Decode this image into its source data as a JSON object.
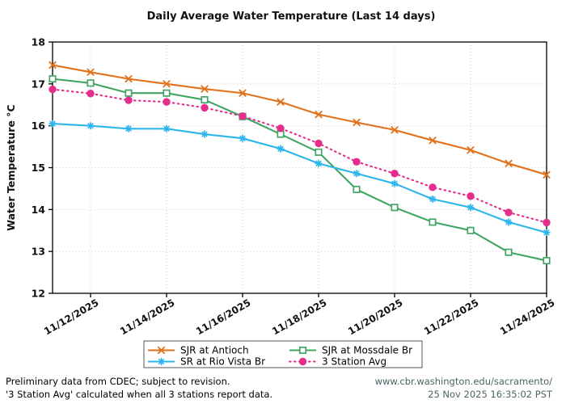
{
  "chart_data": {
    "type": "line",
    "title": "Daily Average Water Temperature (Last 14 days)",
    "ylabel": "Water Temperature °C",
    "xlabel": "",
    "ylim": [
      12,
      18
    ],
    "y_ticks": [
      12,
      13,
      14,
      15,
      16,
      17,
      18
    ],
    "grid": true,
    "legend_position": "bottom",
    "x": [
      "11/11/2025",
      "11/12/2025",
      "11/13/2025",
      "11/14/2025",
      "11/15/2025",
      "11/16/2025",
      "11/17/2025",
      "11/18/2025",
      "11/19/2025",
      "11/20/2025",
      "11/21/2025",
      "11/22/2025",
      "11/23/2025",
      "11/24/2025"
    ],
    "x_tick_labels": [
      "11/12/2025",
      "11/14/2025",
      "11/16/2025",
      "11/18/2025",
      "11/20/2025",
      "11/22/2025",
      "11/24/2025"
    ],
    "series": [
      {
        "name": "SJR at Antioch",
        "color": "#e2711b",
        "marker": "x",
        "line_style": "solid",
        "values": [
          17.45,
          17.28,
          17.12,
          17.0,
          16.88,
          16.78,
          16.57,
          16.27,
          16.08,
          15.9,
          15.65,
          15.42,
          15.1,
          14.83
        ]
      },
      {
        "name": "SJR at Mossdale Br",
        "color": "#41a565",
        "marker": "open-square",
        "line_style": "solid",
        "values": [
          17.12,
          17.02,
          16.78,
          16.78,
          16.62,
          16.22,
          15.8,
          15.37,
          14.48,
          14.05,
          13.7,
          13.5,
          12.98,
          12.78
        ]
      },
      {
        "name": "SR at Rio Vista Br",
        "color": "#2cb6ec",
        "marker": "asterisk",
        "line_style": "solid",
        "values": [
          16.05,
          16.0,
          15.93,
          15.93,
          15.8,
          15.7,
          15.45,
          15.1,
          14.86,
          14.62,
          14.25,
          14.05,
          13.7,
          13.45
        ]
      },
      {
        "name": "3 Station Avg",
        "color": "#e72d8c",
        "marker": "filled-circle",
        "line_style": "dotted",
        "values": [
          16.87,
          16.77,
          16.61,
          16.57,
          16.43,
          16.23,
          15.94,
          15.58,
          15.14,
          14.86,
          14.53,
          14.32,
          13.93,
          13.69
        ]
      }
    ]
  },
  "footer": {
    "left_line1": "Preliminary data from CDEC; subject to revision.",
    "left_line2": "'3 Station Avg' calculated when all 3 stations report data.",
    "right_line1": "www.cbr.washington.edu/sacramento/",
    "right_line2": "25 Nov 2025 16:35:02 PST",
    "right_color": "#4d6468"
  }
}
